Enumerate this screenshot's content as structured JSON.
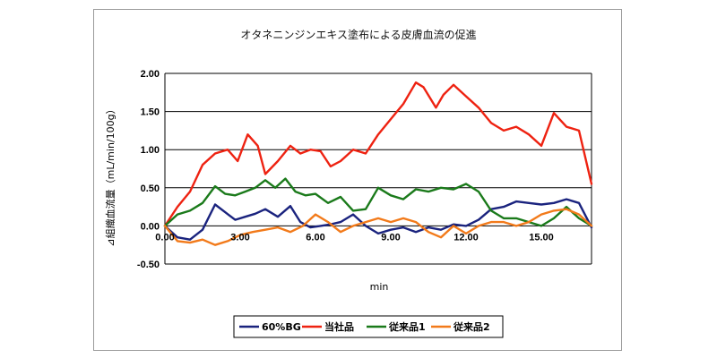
{
  "chart_data": {
    "type": "line",
    "title": "オタネニンジンエキス塗布による皮膚血流の促進",
    "xlabel": "min",
    "ylabel": "⊿組織血流量（mL/min/100g）",
    "xlim": [
      0,
      17
    ],
    "ylim": [
      -0.5,
      2.0
    ],
    "x_ticks": [
      "0.00",
      "3.00",
      "6.00",
      "9.00",
      "12.00",
      "15.00"
    ],
    "y_ticks": [
      "2.00",
      "1.50",
      "1.00",
      "0.50",
      "0.00",
      "-0.50"
    ],
    "grid": "horizontal",
    "legend_position": "bottom",
    "series": [
      {
        "name": "60%BG",
        "color": "#1a237e",
        "x": [
          0,
          0.5,
          1.0,
          1.5,
          2.0,
          2.4,
          2.8,
          3.2,
          3.6,
          4.0,
          4.5,
          5.0,
          5.4,
          5.8,
          6.2,
          6.6,
          7.0,
          7.5,
          8.0,
          8.5,
          9.0,
          9.5,
          10.0,
          10.5,
          11.0,
          11.5,
          12.0,
          12.5,
          13.0,
          13.5,
          14.0,
          14.5,
          15.0,
          15.5,
          16.0,
          16.5,
          17.0
        ],
        "y": [
          0.0,
          -0.15,
          -0.18,
          -0.05,
          0.28,
          0.18,
          0.08,
          0.12,
          0.16,
          0.22,
          0.12,
          0.26,
          0.05,
          -0.02,
          0.0,
          0.02,
          0.05,
          0.15,
          0.0,
          -0.1,
          -0.05,
          -0.02,
          -0.08,
          -0.02,
          -0.05,
          0.02,
          0.0,
          0.08,
          0.22,
          0.25,
          0.32,
          0.3,
          0.28,
          0.3,
          0.35,
          0.3,
          -0.02
        ]
      },
      {
        "name": "当社品",
        "color": "#ee2211",
        "x": [
          0,
          0.5,
          1.0,
          1.5,
          2.0,
          2.5,
          2.9,
          3.3,
          3.7,
          4.0,
          4.5,
          5.0,
          5.4,
          5.8,
          6.2,
          6.6,
          7.0,
          7.5,
          8.0,
          8.5,
          9.0,
          9.5,
          10.0,
          10.3,
          10.8,
          11.1,
          11.5,
          12.0,
          12.5,
          13.0,
          13.5,
          14.0,
          14.5,
          15.0,
          15.5,
          16.0,
          16.5,
          17.0
        ],
        "y": [
          0.0,
          0.25,
          0.45,
          0.8,
          0.95,
          1.0,
          0.85,
          1.2,
          1.05,
          0.68,
          0.85,
          1.05,
          0.95,
          1.0,
          0.98,
          0.78,
          0.85,
          1.0,
          0.95,
          1.2,
          1.4,
          1.6,
          1.88,
          1.82,
          1.55,
          1.72,
          1.85,
          1.7,
          1.55,
          1.35,
          1.25,
          1.3,
          1.2,
          1.05,
          1.48,
          1.3,
          1.25,
          0.55
        ]
      },
      {
        "name": "従来品1",
        "color": "#1a7a1a",
        "x": [
          0,
          0.5,
          1.0,
          1.5,
          2.0,
          2.4,
          2.8,
          3.2,
          3.6,
          4.0,
          4.4,
          4.8,
          5.2,
          5.6,
          6.0,
          6.5,
          7.0,
          7.5,
          8.0,
          8.5,
          9.0,
          9.5,
          10.0,
          10.5,
          11.0,
          11.5,
          12.0,
          12.5,
          13.0,
          13.5,
          14.0,
          14.5,
          15.0,
          15.5,
          16.0,
          16.5,
          17.0
        ],
        "y": [
          0.0,
          0.15,
          0.2,
          0.3,
          0.52,
          0.42,
          0.4,
          0.45,
          0.5,
          0.6,
          0.5,
          0.62,
          0.45,
          0.4,
          0.42,
          0.3,
          0.38,
          0.2,
          0.22,
          0.5,
          0.4,
          0.35,
          0.48,
          0.45,
          0.5,
          0.48,
          0.55,
          0.45,
          0.2,
          0.1,
          0.1,
          0.05,
          0.0,
          0.1,
          0.25,
          0.1,
          0.0
        ]
      },
      {
        "name": "従来品2",
        "color": "#f27a1a",
        "x": [
          0,
          0.5,
          1.0,
          1.5,
          2.0,
          2.5,
          3.0,
          3.5,
          4.0,
          4.5,
          5.0,
          5.5,
          6.0,
          6.5,
          7.0,
          7.5,
          8.0,
          8.5,
          9.0,
          9.5,
          10.0,
          10.5,
          11.0,
          11.5,
          12.0,
          12.5,
          13.0,
          13.5,
          14.0,
          14.5,
          15.0,
          15.5,
          16.0,
          16.5,
          17.0
        ],
        "y": [
          0.0,
          -0.2,
          -0.22,
          -0.18,
          -0.25,
          -0.2,
          -0.12,
          -0.08,
          -0.05,
          -0.02,
          -0.08,
          0.0,
          0.15,
          0.05,
          -0.08,
          0.0,
          0.05,
          0.1,
          0.05,
          0.1,
          0.05,
          -0.08,
          -0.15,
          0.0,
          -0.1,
          0.0,
          0.05,
          0.05,
          0.0,
          0.05,
          0.15,
          0.2,
          0.22,
          0.15,
          0.0
        ]
      }
    ]
  }
}
